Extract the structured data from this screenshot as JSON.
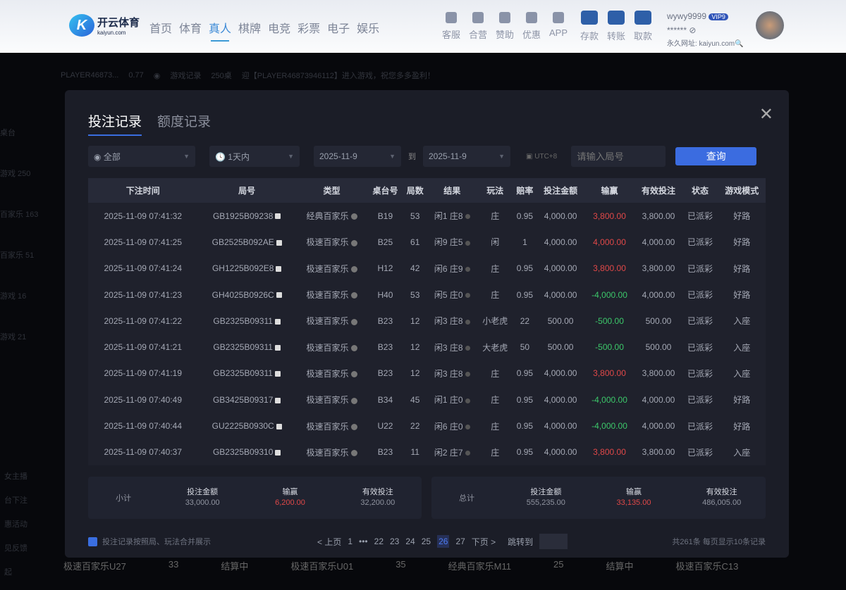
{
  "header": {
    "logo_cn": "开云体育",
    "logo_en": "kaiyun.com",
    "nav": [
      "首页",
      "体育",
      "真人",
      "棋牌",
      "电竞",
      "彩票",
      "电子",
      "娱乐"
    ],
    "active_nav": "真人",
    "tools": [
      "客服",
      "合营",
      "赞助",
      "优惠",
      "APP"
    ],
    "wallet": [
      "存款",
      "转账",
      "取款"
    ],
    "username": "wywy9999",
    "vip": "VIP9",
    "masked": "******",
    "url": "永久网址: kaiyun.com"
  },
  "strip": {
    "player": "PLAYER46873...",
    "balance": "0.77",
    "records": "游戏记录",
    "tables": "250桌",
    "notice": "迎【PLAYER46873946112】进入游戏，祝您多多盈利！"
  },
  "sidebar": [
    "桌台",
    "游戏 250",
    "百家乐 163",
    "百家乐 51",
    "游戏 16",
    "游戏 21"
  ],
  "sidebar_bottom": [
    "女主播",
    "台下注",
    "惠活动",
    "见反馈",
    "起"
  ],
  "bottom_tiles": [
    "极速百家乐U27",
    "33",
    "结算中",
    "极速百家乐U01",
    "35",
    "经典百家乐M11",
    "25",
    "结算中",
    "极速百家乐C13"
  ],
  "modal": {
    "tabs": [
      "投注记录",
      "额度记录"
    ],
    "filters": {
      "type": "全部",
      "range": "1天内",
      "from": "2025-11-9",
      "to_label": "到",
      "to": "2025-11-9",
      "tz": "UTC+8",
      "round_placeholder": "请输入局号",
      "query": "查询"
    },
    "columns": [
      "下注时间",
      "局号",
      "类型",
      "桌台号",
      "局数",
      "结果",
      "玩法",
      "赔率",
      "投注金额",
      "输赢",
      "有效投注",
      "状态",
      "游戏模式"
    ],
    "rows": [
      [
        "2025-11-09 07:41:32",
        "GB1925B09238",
        "经典百家乐",
        "B19",
        "53",
        "闲1 庄8",
        "庄",
        "0.95",
        "4,000.00",
        "3,800.00",
        "3,800.00",
        "已派彩",
        "好路"
      ],
      [
        "2025-11-09 07:41:25",
        "GB2525B092AE",
        "极速百家乐",
        "B25",
        "61",
        "闲9 庄5",
        "闲",
        "1",
        "4,000.00",
        "4,000.00",
        "4,000.00",
        "已派彩",
        "好路"
      ],
      [
        "2025-11-09 07:41:24",
        "GH1225B092E8",
        "极速百家乐",
        "H12",
        "42",
        "闲6 庄9",
        "庄",
        "0.95",
        "4,000.00",
        "3,800.00",
        "3,800.00",
        "已派彩",
        "好路"
      ],
      [
        "2025-11-09 07:41:23",
        "GH4025B0926C",
        "极速百家乐",
        "H40",
        "53",
        "闲5 庄0",
        "庄",
        "0.95",
        "4,000.00",
        "-4,000.00",
        "4,000.00",
        "已派彩",
        "好路"
      ],
      [
        "2025-11-09 07:41:22",
        "GB2325B09311",
        "极速百家乐",
        "B23",
        "12",
        "闲3 庄8",
        "小老虎",
        "22",
        "500.00",
        "-500.00",
        "500.00",
        "已派彩",
        "入座"
      ],
      [
        "2025-11-09 07:41:21",
        "GB2325B09311",
        "极速百家乐",
        "B23",
        "12",
        "闲3 庄8",
        "大老虎",
        "50",
        "500.00",
        "-500.00",
        "500.00",
        "已派彩",
        "入座"
      ],
      [
        "2025-11-09 07:41:19",
        "GB2325B09311",
        "极速百家乐",
        "B23",
        "12",
        "闲3 庄8",
        "庄",
        "0.95",
        "4,000.00",
        "3,800.00",
        "3,800.00",
        "已派彩",
        "入座"
      ],
      [
        "2025-11-09 07:40:49",
        "GB3425B09317",
        "极速百家乐",
        "B34",
        "45",
        "闲1 庄0",
        "庄",
        "0.95",
        "4,000.00",
        "-4,000.00",
        "4,000.00",
        "已派彩",
        "好路"
      ],
      [
        "2025-11-09 07:40:44",
        "GU2225B0930C",
        "极速百家乐",
        "U22",
        "22",
        "闲6 庄0",
        "庄",
        "0.95",
        "4,000.00",
        "-4,000.00",
        "4,000.00",
        "已派彩",
        "好路"
      ],
      [
        "2025-11-09 07:40:37",
        "GB2325B09310",
        "极速百家乐",
        "B23",
        "11",
        "闲2 庄7",
        "庄",
        "0.95",
        "4,000.00",
        "3,800.00",
        "3,800.00",
        "已派彩",
        "入座"
      ]
    ],
    "subtotal": {
      "label": "小计",
      "bet_label": "投注金额",
      "bet": "33,000.00",
      "win_label": "输赢",
      "win": "6,200.00",
      "valid_label": "有效投注",
      "valid": "32,200.00"
    },
    "total": {
      "label": "总计",
      "bet_label": "投注金额",
      "bet": "555,235.00",
      "win_label": "输赢",
      "win": "33,135.00",
      "valid_label": "有效投注",
      "valid": "486,005.00"
    },
    "merge_label": "投注记录按照局、玩法合并展示",
    "pagination": {
      "prev": "< 上页",
      "pages": [
        "1",
        "•••",
        "22",
        "23",
        "24",
        "25",
        "26",
        "27"
      ],
      "current": "26",
      "next": "下页 >",
      "jump": "跳转到"
    },
    "summary": "共261条  每页显示10条记录"
  },
  "colors": {
    "accent": "#3b6ce0",
    "win": "#e04848",
    "loss": "#3cc86a"
  }
}
